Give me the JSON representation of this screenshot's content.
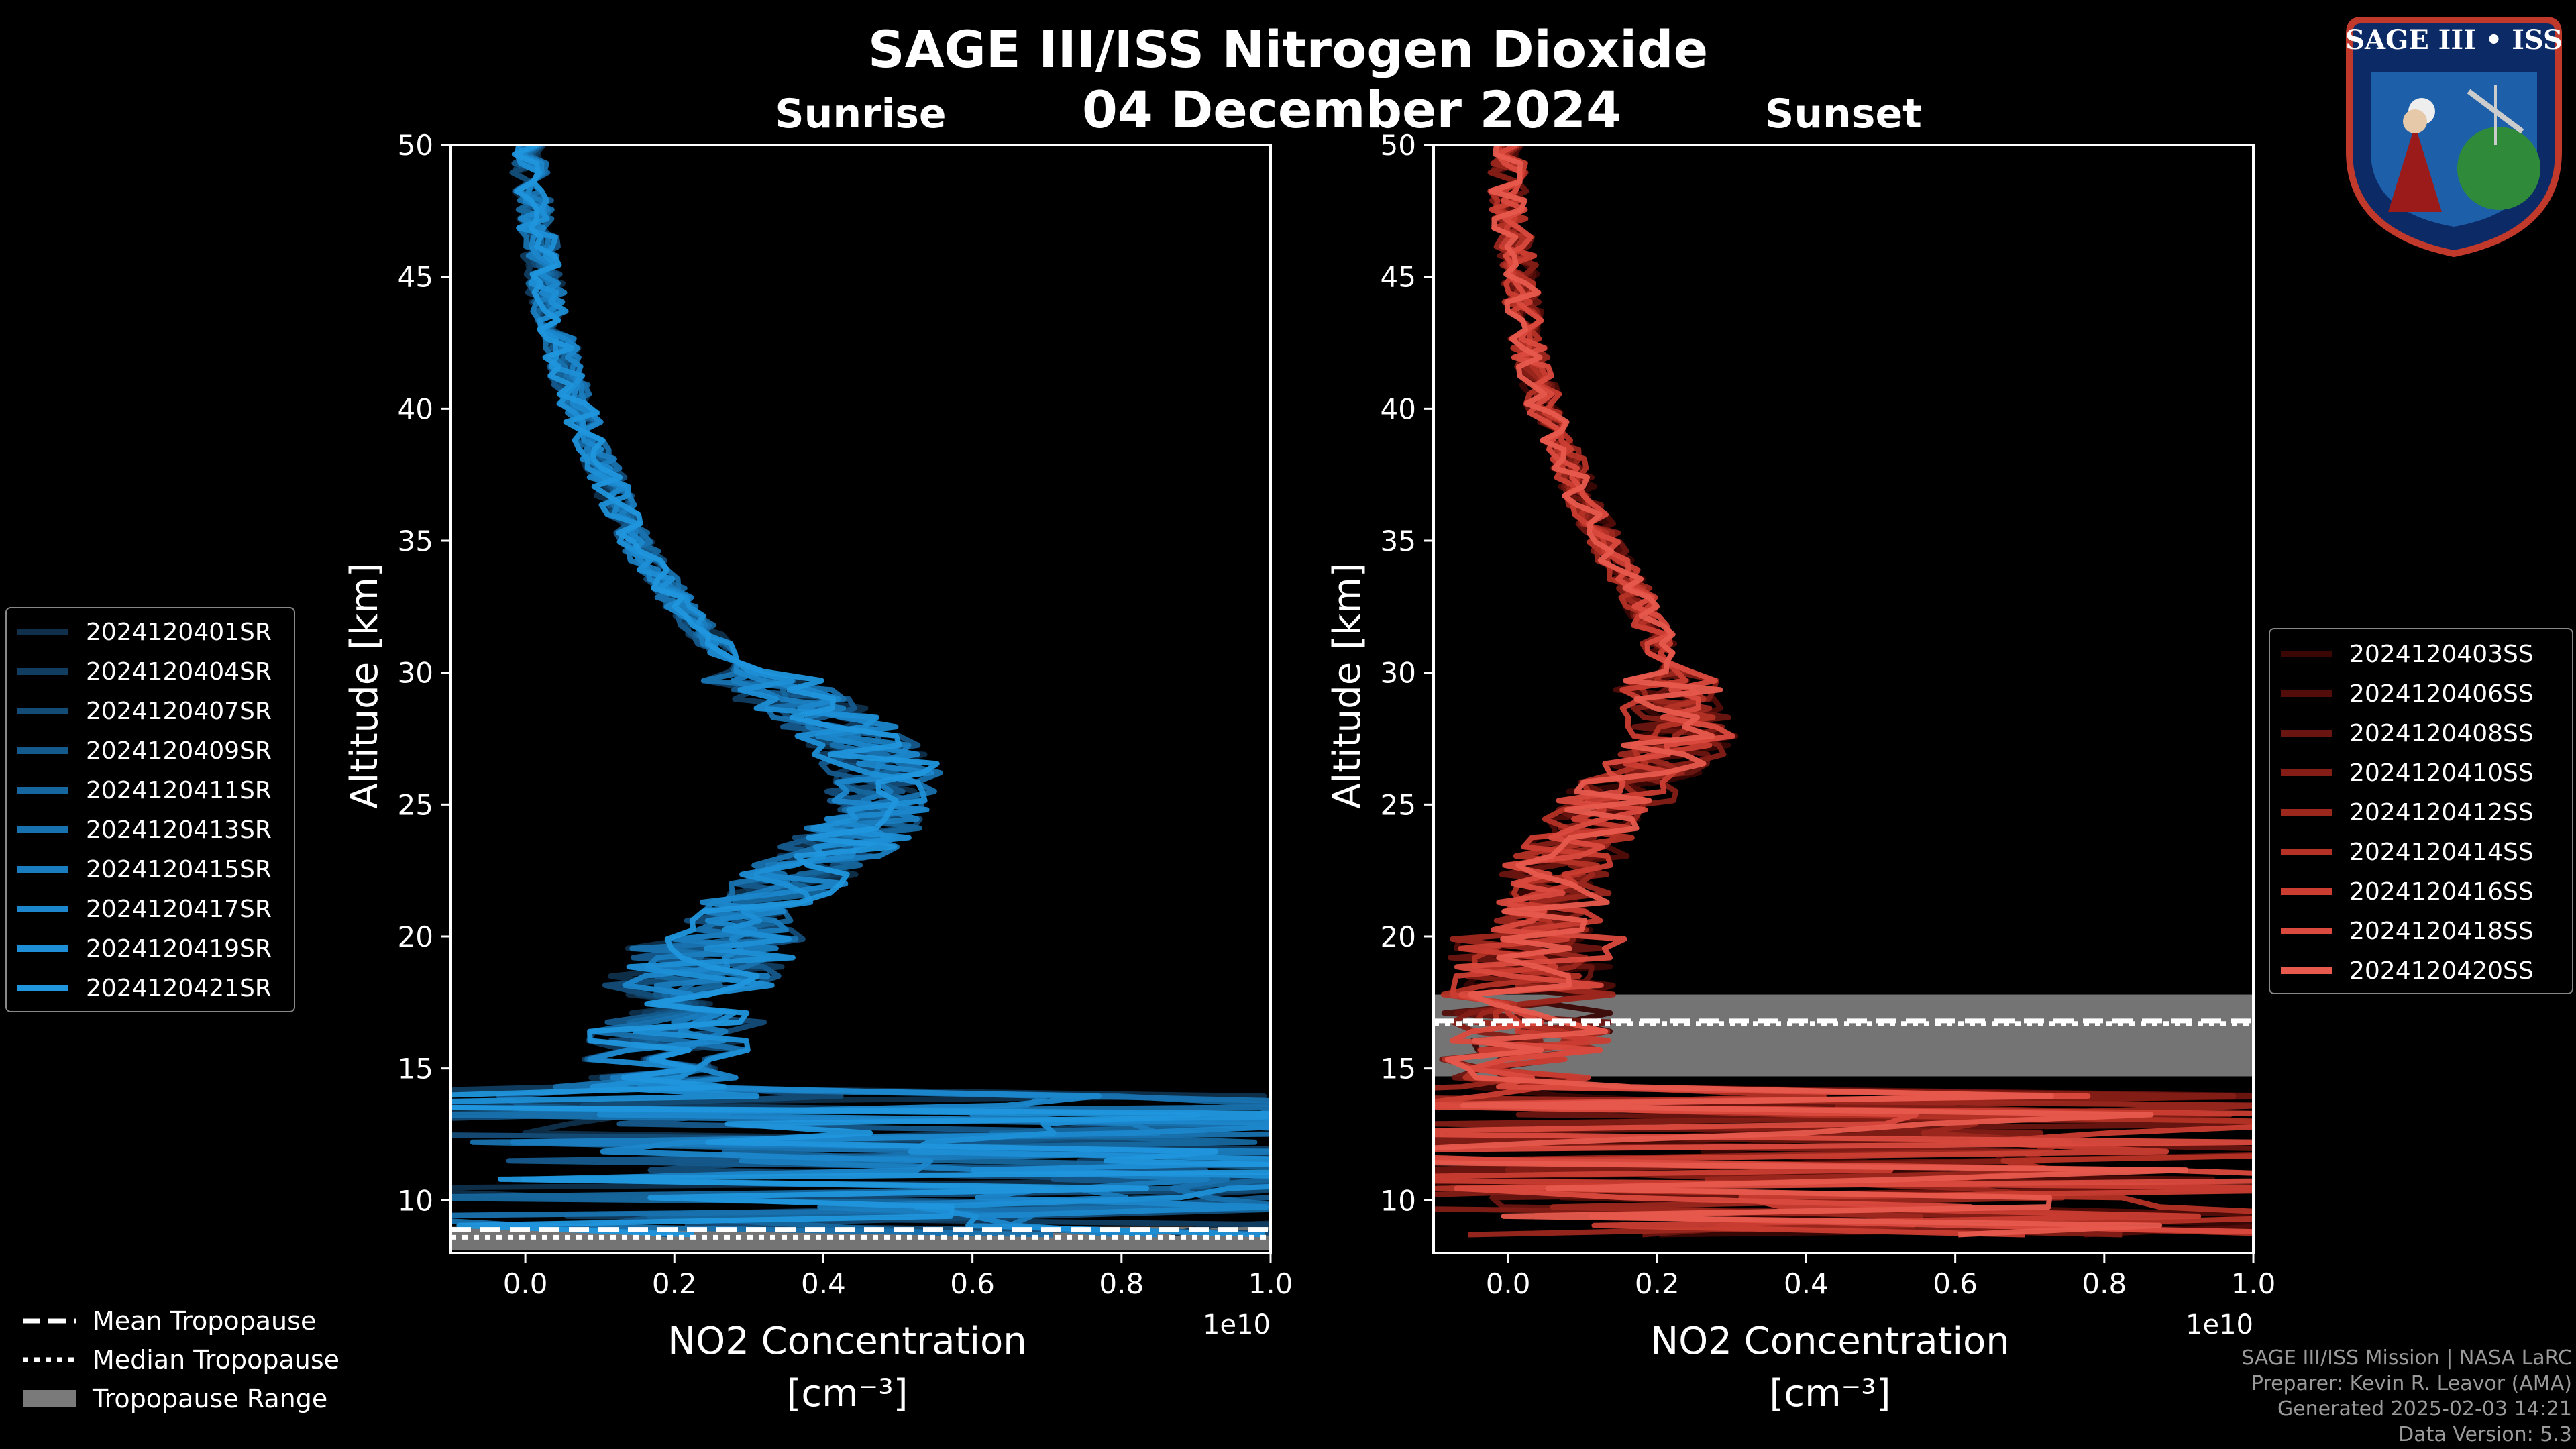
{
  "title": "SAGE III/ISS Nitrogen Dioxide",
  "date": "04 December 2024",
  "colors": {
    "sunrise": "#1f8fd1",
    "sunset": "#e2574c",
    "tropo_fill": "#7a7a7a"
  },
  "chart_data": [
    {
      "type": "line",
      "panel": "Sunrise",
      "title": "Sunrise",
      "xlabel": "NO2 Concentration",
      "xlabel_units": "[cm⁻³]",
      "x_scale_label": "1e10",
      "ylabel": "Altitude [km]",
      "xlim": [
        -0.1,
        1.0
      ],
      "ylim": [
        8,
        50
      ],
      "xticks": [
        0.0,
        0.2,
        0.4,
        0.6,
        0.8,
        1.0
      ],
      "xtick_labels": [
        "0.0",
        "0.2",
        "0.4",
        "0.6",
        "0.8",
        "1.0"
      ],
      "yticks": [
        10,
        15,
        20,
        25,
        30,
        35,
        40,
        45,
        50
      ],
      "legend_position": "left",
      "tropopause": {
        "mean": 8.9,
        "median": 8.6,
        "range": [
          8.1,
          9.0
        ]
      },
      "mean_profile": {
        "altitude": [
          50,
          48,
          46,
          44,
          42,
          40,
          38,
          36,
          34,
          32,
          30,
          29,
          28,
          27,
          26,
          25,
          24,
          23,
          22,
          21,
          20,
          19,
          18,
          17,
          16,
          15,
          14,
          13,
          12,
          11,
          10,
          9
        ],
        "value": [
          0.0,
          0.01,
          0.02,
          0.03,
          0.05,
          0.07,
          0.1,
          0.13,
          0.17,
          0.22,
          0.3,
          0.36,
          0.42,
          0.46,
          0.49,
          0.48,
          0.45,
          0.4,
          0.35,
          0.3,
          0.27,
          0.24,
          0.22,
          0.21,
          0.2,
          0.18,
          0.15,
          0.2,
          0.3,
          0.4,
          0.4,
          0.35
        ]
      },
      "series": [
        {
          "name": "2024120401SR",
          "color": "#0f2f4a"
        },
        {
          "name": "2024120404SR",
          "color": "#113d61"
        },
        {
          "name": "2024120407SR",
          "color": "#134c77"
        },
        {
          "name": "2024120409SR",
          "color": "#155a8c"
        },
        {
          "name": "2024120411SR",
          "color": "#16679f"
        },
        {
          "name": "2024120413SR",
          "color": "#1872af"
        },
        {
          "name": "2024120415SR",
          "color": "#1a7dbf"
        },
        {
          "name": "2024120417SR",
          "color": "#1c87cc"
        },
        {
          "name": "2024120419SR",
          "color": "#1e8fd6"
        },
        {
          "name": "2024120421SR",
          "color": "#2096dd"
        }
      ]
    },
    {
      "type": "line",
      "panel": "Sunset",
      "title": "Sunset",
      "xlabel": "NO2 Concentration",
      "xlabel_units": "[cm⁻³]",
      "x_scale_label": "1e10",
      "ylabel": "Altitude [km]",
      "xlim": [
        -0.1,
        1.0
      ],
      "ylim": [
        8,
        50
      ],
      "xticks": [
        0.0,
        0.2,
        0.4,
        0.6,
        0.8,
        1.0
      ],
      "xtick_labels": [
        "0.0",
        "0.2",
        "0.4",
        "0.6",
        "0.8",
        "1.0"
      ],
      "yticks": [
        10,
        15,
        20,
        25,
        30,
        35,
        40,
        45,
        50
      ],
      "legend_position": "right",
      "tropopause": {
        "mean": 16.8,
        "median": 16.7,
        "range": [
          14.7,
          17.8
        ]
      },
      "mean_profile": {
        "altitude": [
          50,
          48,
          46,
          44,
          42,
          40,
          38,
          36,
          34,
          32,
          30,
          29,
          28,
          27,
          26,
          25,
          24,
          23,
          22,
          21,
          20,
          19,
          18,
          17,
          16,
          15,
          14,
          13,
          12,
          11,
          10,
          9
        ],
        "value": [
          0.0,
          0.0,
          0.01,
          0.02,
          0.03,
          0.05,
          0.08,
          0.11,
          0.15,
          0.19,
          0.22,
          0.22,
          0.24,
          0.22,
          0.18,
          0.14,
          0.11,
          0.08,
          0.06,
          0.05,
          0.04,
          0.04,
          0.03,
          0.02,
          0.02,
          0.03,
          0.05,
          0.08,
          0.15,
          0.25,
          0.25,
          0.3
        ]
      },
      "series": [
        {
          "name": "2024120403SS",
          "color": "#3a0705"
        },
        {
          "name": "2024120406SS",
          "color": "#520d0a"
        },
        {
          "name": "2024120408SS",
          "color": "#6a1510"
        },
        {
          "name": "2024120410SS",
          "color": "#831d16"
        },
        {
          "name": "2024120412SS",
          "color": "#9c271d"
        },
        {
          "name": "2024120414SS",
          "color": "#b53126"
        },
        {
          "name": "2024120416SS",
          "color": "#cb3d31"
        },
        {
          "name": "2024120418SS",
          "color": "#db4a3e"
        },
        {
          "name": "2024120420SS",
          "color": "#e85a4d"
        }
      ]
    }
  ],
  "tropopause_legend": [
    {
      "style": "dashed",
      "label": "Mean Tropopause"
    },
    {
      "style": "dotted",
      "label": "Median Tropopause"
    },
    {
      "style": "fill",
      "label": "Tropopause Range"
    }
  ],
  "credits": [
    "SAGE III/ISS Mission | NASA LaRC",
    "Preparer: Kevin R. Leavor (AMA)",
    "Generated 2025-02-03 14:21",
    "Data Version: 5.3"
  ],
  "logo": {
    "title": "SAGE III • ISS"
  }
}
